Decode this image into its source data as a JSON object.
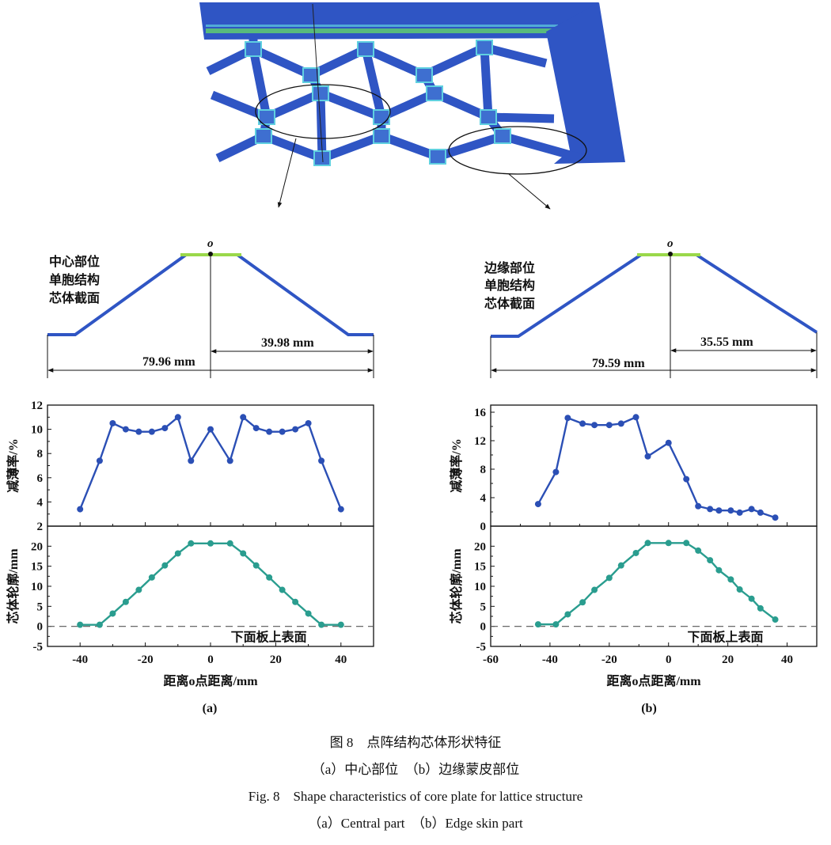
{
  "figure": {
    "panel_a_label": "(a)",
    "panel_b_label": "(b)",
    "caption_cn": "图 8　点阵结构芯体形状特征",
    "subcaption_cn": "（a）中心部位　（b）边缘蒙皮部位",
    "caption_en": "Fig. 8　Shape characteristics of core plate for lattice structure",
    "subcaption_en": "（a）Central part　（b）Edge skin part"
  },
  "sections": {
    "a": {
      "lines": [
        "中心部位",
        "单胞结构",
        "芯体截面"
      ],
      "origin": "o",
      "half_dim": "39.98 mm",
      "full_dim": "79.96 mm"
    },
    "b": {
      "lines": [
        "边缘部位",
        "单胞结构",
        "芯体截面"
      ],
      "origin": "o",
      "half_dim": "35.55 mm",
      "full_dim": "79.59 mm"
    }
  },
  "colors": {
    "thinning": "#2b4fb5",
    "profile": "#2a9d8f",
    "fem_blue": "#2f55c4",
    "fem_node": "#5fd0e0"
  },
  "chart_data": [
    {
      "type": "line",
      "panel": "a",
      "xlabel": "距离o点距离/mm",
      "xlim": [
        -50,
        50
      ],
      "xticks": [
        -40,
        -20,
        0,
        20,
        40
      ],
      "subplots": [
        {
          "ylabel": "减薄率/%",
          "ylim": [
            2,
            12
          ],
          "yticks": [
            2,
            4,
            6,
            8,
            10,
            12
          ],
          "x": [
            -40,
            -34,
            -30,
            -26,
            -22,
            -18,
            -14,
            -10,
            -6,
            0,
            6,
            10,
            14,
            18,
            22,
            26,
            30,
            34,
            40
          ],
          "y": [
            3.4,
            7.4,
            10.5,
            10.0,
            9.8,
            9.8,
            10.1,
            11.0,
            7.4,
            10.0,
            7.4,
            11.0,
            10.1,
            9.8,
            9.8,
            10.0,
            10.5,
            7.4,
            3.4
          ]
        },
        {
          "ylabel": "芯体轮廓/mm",
          "ylim": [
            -5,
            25
          ],
          "yticks": [
            -5,
            0,
            5,
            10,
            15,
            20
          ],
          "x": [
            -40,
            -34,
            -30,
            -26,
            -22,
            -18,
            -14,
            -10,
            -6,
            0,
            6,
            10,
            14,
            18,
            22,
            26,
            30,
            34,
            40
          ],
          "y": [
            0.4,
            0.4,
            3.2,
            6.1,
            9.1,
            12.2,
            15.2,
            18.2,
            20.7,
            20.7,
            20.7,
            18.2,
            15.2,
            12.2,
            9.1,
            6.1,
            3.2,
            0.4,
            0.4
          ],
          "reference_line": {
            "y": 0,
            "label": "下面板上表面"
          }
        }
      ]
    },
    {
      "type": "line",
      "panel": "b",
      "xlabel": "距离o点距离/mm",
      "xlim": [
        -60,
        50
      ],
      "xticks": [
        -60,
        -40,
        -20,
        0,
        20,
        40
      ],
      "subplots": [
        {
          "ylabel": "减薄率/%",
          "ylim": [
            0,
            17
          ],
          "yticks": [
            0,
            4,
            8,
            12,
            16
          ],
          "x": [
            -44,
            -38,
            -34,
            -29,
            -25,
            -20,
            -16,
            -11,
            -7,
            0,
            6,
            10,
            14,
            17,
            21,
            24,
            28,
            31,
            36
          ],
          "y": [
            3.1,
            7.6,
            15.2,
            14.4,
            14.2,
            14.2,
            14.4,
            15.3,
            9.8,
            11.7,
            6.6,
            2.8,
            2.4,
            2.2,
            2.2,
            1.9,
            2.4,
            1.9,
            1.2
          ]
        },
        {
          "ylabel": "芯体轮廓/mm",
          "ylim": [
            -5,
            25
          ],
          "yticks": [
            -5,
            0,
            5,
            10,
            15,
            20
          ],
          "x": [
            -44,
            -38,
            -34,
            -29,
            -25,
            -20,
            -16,
            -11,
            -7,
            0,
            6,
            10,
            14,
            17,
            21,
            24,
            28,
            31,
            36
          ],
          "y": [
            0.5,
            0.5,
            3.0,
            6.0,
            9.1,
            12.1,
            15.2,
            18.3,
            20.8,
            20.8,
            20.8,
            18.9,
            16.5,
            14.0,
            11.7,
            9.2,
            6.9,
            4.5,
            1.7
          ],
          "reference_line": {
            "y": 0,
            "label": "下面板上表面"
          }
        }
      ]
    }
  ]
}
